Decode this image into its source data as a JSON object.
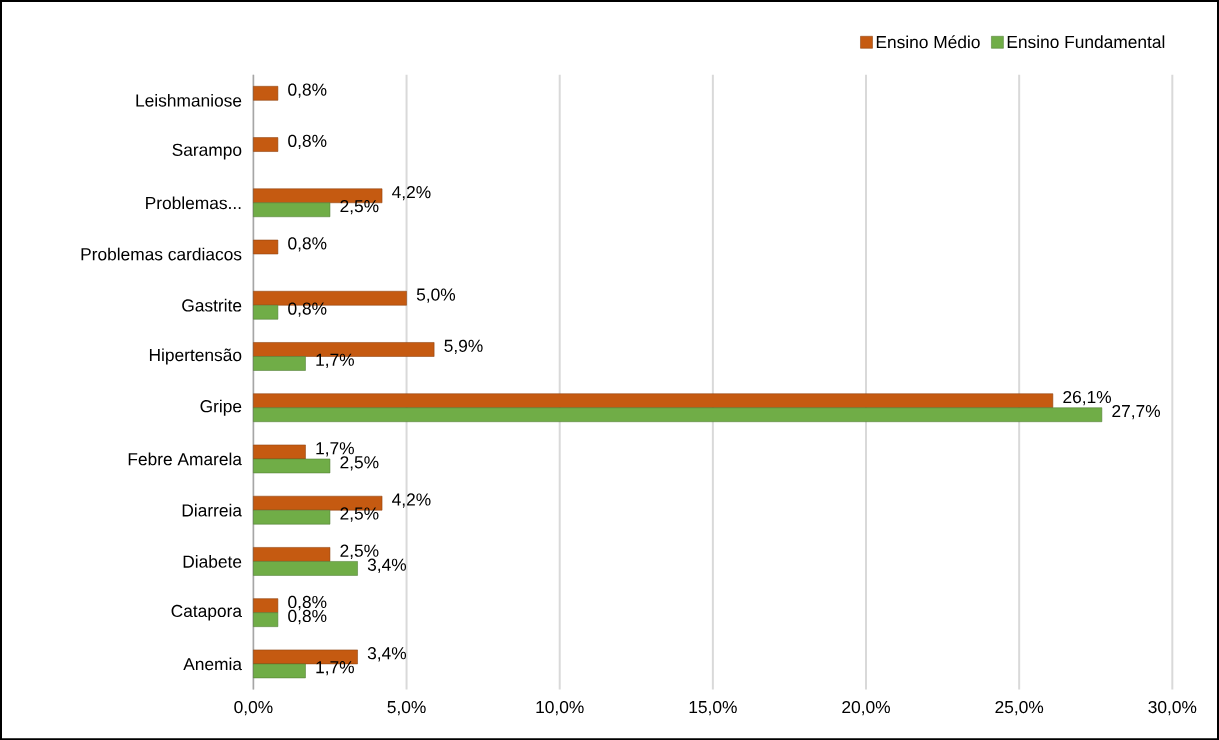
{
  "chart_data": {
    "type": "bar",
    "orientation": "horizontal",
    "categories": [
      "Leishmaniose",
      "Sarampo",
      "Problemas...",
      "Problemas cardiacos",
      "Gastrite",
      "Hipertensão",
      "Gripe",
      "Febre Amarela",
      "Diarreia",
      "Diabete",
      "Catapora",
      "Anemia"
    ],
    "series": [
      {
        "name": "Ensino Médio",
        "color": "#c55a11",
        "values": [
          0.8,
          0.8,
          4.2,
          0.8,
          5.0,
          5.9,
          26.1,
          1.7,
          4.2,
          2.5,
          0.8,
          3.4
        ],
        "value_labels": [
          "0,8%",
          "0,8%",
          "4,2%",
          "0,8%",
          "5,0%",
          "5,9%",
          "26,1%",
          "1,7%",
          "4,2%",
          "2,5%",
          "0,8%",
          "3,4%"
        ]
      },
      {
        "name": "Ensino Fundamental",
        "color": "#70ad47",
        "values": [
          null,
          null,
          2.5,
          null,
          0.8,
          1.7,
          27.7,
          2.5,
          2.5,
          3.4,
          0.8,
          1.7
        ],
        "value_labels": [
          null,
          null,
          "2,5%",
          null,
          "0,8%",
          "1,7%",
          "27,7%",
          "2,5%",
          "2,5%",
          "3,4%",
          "0,8%",
          "1,7%"
        ]
      }
    ],
    "xlim": [
      0,
      30
    ],
    "xticks": [
      {
        "value": 0,
        "label": "0,0%"
      },
      {
        "value": 5,
        "label": "5,0%"
      },
      {
        "value": 10,
        "label": "10,0%"
      },
      {
        "value": 15,
        "label": "15,0%"
      },
      {
        "value": 20,
        "label": "20,0%"
      },
      {
        "value": 25,
        "label": "25,0%"
      },
      {
        "value": 30,
        "label": "30,0%"
      }
    ],
    "grid": "x",
    "legend": "top right"
  }
}
